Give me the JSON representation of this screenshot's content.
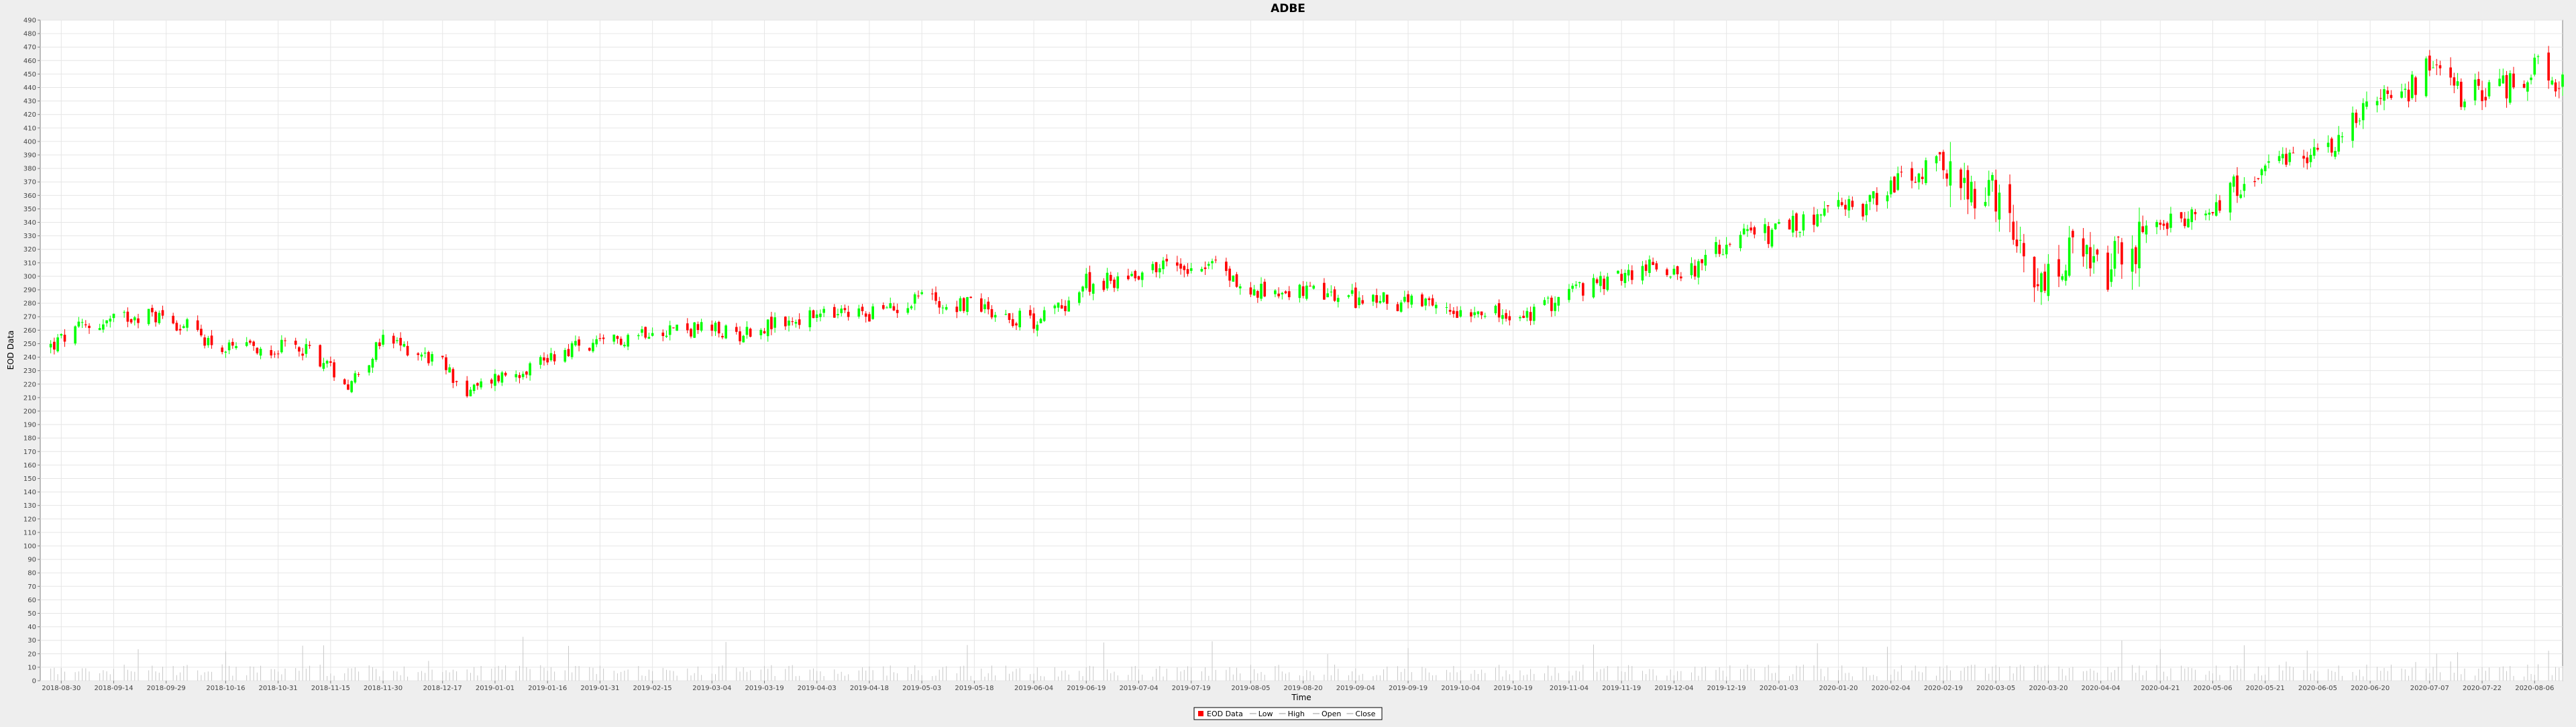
{
  "chart_data": {
    "type": "candlestick",
    "title": "ADBE",
    "xlabel": "Time",
    "ylabel": "EOD Data",
    "ylim": [
      0,
      490
    ],
    "y_ticks": [
      0,
      10,
      20,
      30,
      40,
      50,
      60,
      70,
      80,
      90,
      100,
      110,
      120,
      130,
      140,
      150,
      160,
      170,
      180,
      190,
      200,
      210,
      220,
      230,
      240,
      250,
      260,
      270,
      280,
      290,
      300,
      310,
      320,
      330,
      340,
      350,
      360,
      370,
      380,
      390,
      400,
      410,
      420,
      430,
      440,
      450,
      460,
      470,
      480,
      490
    ],
    "x_range": [
      "2018-08-24",
      "2020-08-14"
    ],
    "x_ticks": [
      "2018-08-30",
      "2018-09-14",
      "2018-09-29",
      "2018-10-16",
      "2018-10-31",
      "2018-11-15",
      "2018-11-30",
      "2018-12-17",
      "2019-01-01",
      "2019-01-16",
      "2019-01-31",
      "2019-02-15",
      "2019-03-04",
      "2019-03-19",
      "2019-04-03",
      "2019-04-18",
      "2019-05-03",
      "2019-05-18",
      "2019-06-04",
      "2019-06-19",
      "2019-07-04",
      "2019-07-19",
      "2019-08-05",
      "2019-08-20",
      "2019-09-04",
      "2019-09-19",
      "2019-10-04",
      "2019-10-19",
      "2019-11-04",
      "2019-11-19",
      "2019-12-04",
      "2019-12-19",
      "2020-01-03",
      "2020-01-20",
      "2020-02-04",
      "2020-02-19",
      "2020-03-05",
      "2020-03-20",
      "2020-04-04",
      "2020-04-21",
      "2020-05-06",
      "2020-05-21",
      "2020-06-05",
      "2020-06-20",
      "2020-07-07",
      "2020-07-22",
      "2020-08-06"
    ],
    "grid": true,
    "legend_position": "bottom-center",
    "legend": [
      "EOD Data",
      "Low",
      "High",
      "Open",
      "Close"
    ],
    "colors": {
      "up": "#00ff00",
      "down": "#ff0000",
      "volume": "#c8c8c8",
      "grid": "#e6e6e6",
      "plot_bg": "#ffffff",
      "page_bg": "#eeeeee"
    },
    "close_series": [
      {
        "date": "2018-08-27",
        "close": 248
      },
      {
        "date": "2018-09-05",
        "close": 262
      },
      {
        "date": "2018-09-14",
        "close": 267
      },
      {
        "date": "2018-09-20",
        "close": 272
      },
      {
        "date": "2018-09-29",
        "close": 270
      },
      {
        "date": "2018-10-05",
        "close": 262
      },
      {
        "date": "2018-10-16",
        "close": 245
      },
      {
        "date": "2018-10-24",
        "close": 246
      },
      {
        "date": "2018-10-31",
        "close": 247
      },
      {
        "date": "2018-11-08",
        "close": 247
      },
      {
        "date": "2018-11-15",
        "close": 232
      },
      {
        "date": "2018-11-20",
        "close": 220
      },
      {
        "date": "2018-11-30",
        "close": 252
      },
      {
        "date": "2018-12-10",
        "close": 244
      },
      {
        "date": "2018-12-17",
        "close": 235
      },
      {
        "date": "2018-12-24",
        "close": 213
      },
      {
        "date": "2019-01-01",
        "close": 225
      },
      {
        "date": "2019-01-08",
        "close": 230
      },
      {
        "date": "2019-01-16",
        "close": 240
      },
      {
        "date": "2019-01-24",
        "close": 248
      },
      {
        "date": "2019-01-31",
        "close": 248
      },
      {
        "date": "2019-02-08",
        "close": 256
      },
      {
        "date": "2019-02-15",
        "close": 262
      },
      {
        "date": "2019-03-04",
        "close": 260
      },
      {
        "date": "2019-03-11",
        "close": 257
      },
      {
        "date": "2019-03-19",
        "close": 263
      },
      {
        "date": "2019-04-03",
        "close": 270
      },
      {
        "date": "2019-04-18",
        "close": 273
      },
      {
        "date": "2019-04-25",
        "close": 276
      },
      {
        "date": "2019-05-03",
        "close": 288
      },
      {
        "date": "2019-05-10",
        "close": 278
      },
      {
        "date": "2019-05-18",
        "close": 281
      },
      {
        "date": "2019-05-28",
        "close": 270
      },
      {
        "date": "2019-06-04",
        "close": 267
      },
      {
        "date": "2019-06-12",
        "close": 278
      },
      {
        "date": "2019-06-19",
        "close": 295
      },
      {
        "date": "2019-06-26",
        "close": 296
      },
      {
        "date": "2019-07-04",
        "close": 304
      },
      {
        "date": "2019-07-11",
        "close": 308
      },
      {
        "date": "2019-07-19",
        "close": 309
      },
      {
        "date": "2019-07-26",
        "close": 309
      },
      {
        "date": "2019-08-05",
        "close": 286
      },
      {
        "date": "2019-08-12",
        "close": 291
      },
      {
        "date": "2019-08-20",
        "close": 288
      },
      {
        "date": "2019-08-28",
        "close": 285
      },
      {
        "date": "2019-09-04",
        "close": 283
      },
      {
        "date": "2019-09-12",
        "close": 282
      },
      {
        "date": "2019-09-19",
        "close": 280
      },
      {
        "date": "2019-09-26",
        "close": 276
      },
      {
        "date": "2019-10-04",
        "close": 275
      },
      {
        "date": "2019-10-11",
        "close": 277
      },
      {
        "date": "2019-10-19",
        "close": 265
      },
      {
        "date": "2019-10-28",
        "close": 277
      },
      {
        "date": "2019-11-04",
        "close": 290
      },
      {
        "date": "2019-11-11",
        "close": 292
      },
      {
        "date": "2019-11-19",
        "close": 300
      },
      {
        "date": "2019-11-27",
        "close": 307
      },
      {
        "date": "2019-12-04",
        "close": 305
      },
      {
        "date": "2019-12-11",
        "close": 306
      },
      {
        "date": "2019-12-19",
        "close": 325
      },
      {
        "date": "2019-12-26",
        "close": 330
      },
      {
        "date": "2020-01-03",
        "close": 333
      },
      {
        "date": "2020-01-10",
        "close": 340
      },
      {
        "date": "2020-01-20",
        "close": 350
      },
      {
        "date": "2020-01-27",
        "close": 352
      },
      {
        "date": "2020-02-04",
        "close": 368
      },
      {
        "date": "2020-02-11",
        "close": 374
      },
      {
        "date": "2020-02-19",
        "close": 383
      },
      {
        "date": "2020-02-26",
        "close": 355
      },
      {
        "date": "2020-03-05",
        "close": 355
      },
      {
        "date": "2020-03-12",
        "close": 310
      },
      {
        "date": "2020-03-16",
        "close": 288
      },
      {
        "date": "2020-03-20",
        "close": 295
      },
      {
        "date": "2020-03-27",
        "close": 315
      },
      {
        "date": "2020-04-04",
        "close": 300
      },
      {
        "date": "2020-04-12",
        "close": 318
      },
      {
        "date": "2020-04-21",
        "close": 340
      },
      {
        "date": "2020-04-28",
        "close": 338
      },
      {
        "date": "2020-05-06",
        "close": 352
      },
      {
        "date": "2020-05-13",
        "close": 368
      },
      {
        "date": "2020-05-21",
        "close": 375
      },
      {
        "date": "2020-05-28",
        "close": 385
      },
      {
        "date": "2020-06-05",
        "close": 392
      },
      {
        "date": "2020-06-12",
        "close": 405
      },
      {
        "date": "2020-06-20",
        "close": 436
      },
      {
        "date": "2020-06-26",
        "close": 425
      },
      {
        "date": "2020-07-07",
        "close": 455
      },
      {
        "date": "2020-07-10",
        "close": 465
      },
      {
        "date": "2020-07-14",
        "close": 435
      },
      {
        "date": "2020-07-22",
        "close": 438
      },
      {
        "date": "2020-07-29",
        "close": 440
      },
      {
        "date": "2020-08-06",
        "close": 455
      },
      {
        "date": "2020-08-10",
        "close": 445
      },
      {
        "date": "2020-08-14",
        "close": 445
      }
    ]
  }
}
